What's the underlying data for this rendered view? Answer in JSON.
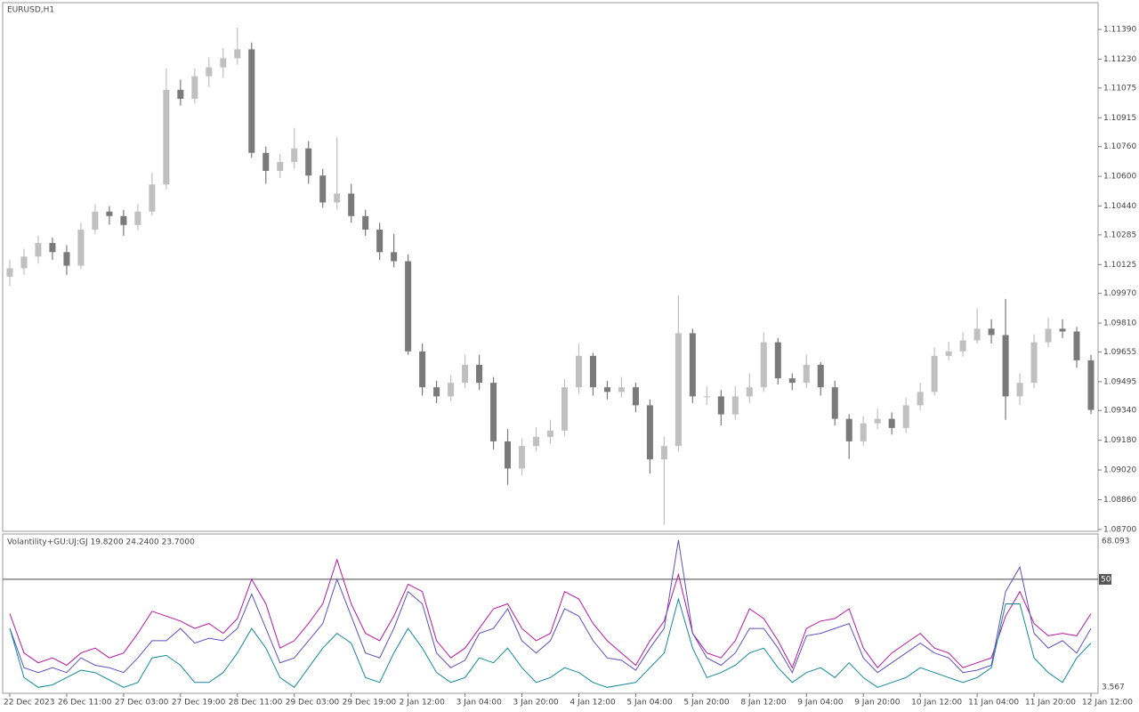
{
  "chart_data": [
    {
      "type": "candlestick",
      "title": "EURUSD,H1",
      "categories": [
        "22 Dec 2023",
        null,
        null,
        null,
        "26 Dec 11:00",
        null,
        null,
        null,
        "27 Dec 03:00",
        null,
        null,
        null,
        "27 Dec 19:00",
        null,
        null,
        null,
        "28 Dec 11:00",
        null,
        null,
        null,
        "29 Dec 03:00",
        null,
        null,
        null,
        "29 Dec 19:00",
        null,
        null,
        null,
        "2 Jan 12:00",
        null,
        null,
        null,
        "3 Jan 04:00",
        null,
        null,
        null,
        "3 Jan 20:00",
        null,
        null,
        null,
        "4 Jan 12:00",
        null,
        null,
        null,
        "5 Jan 04:00",
        null,
        null,
        null,
        "5 Jan 20:00",
        null,
        null,
        null,
        "8 Jan 12:00",
        null,
        null,
        null,
        "9 Jan 04:00",
        null,
        null,
        null,
        "9 Jan 20:00",
        null,
        null,
        null,
        "10 Jan 12:00",
        null,
        null,
        null,
        "11 Jan 04:00",
        null,
        null,
        null,
        "11 Jan 20:00",
        null,
        null,
        null,
        "12 Jan 12:00"
      ],
      "open": [
        1.1006,
        1.10105,
        1.10168,
        1.10241,
        1.10192,
        1.10119,
        1.10313,
        1.1041,
        1.10386,
        1.10338,
        1.1041,
        1.10556,
        1.11065,
        1.11017,
        1.11138,
        1.11186,
        1.11235,
        1.11283,
        1.10726,
        1.10629,
        1.10677,
        1.1075,
        1.10604,
        1.10459,
        1.10507,
        1.10386,
        1.10313,
        1.10192,
        1.10143,
        1.09658,
        1.09465,
        1.09416,
        1.09489,
        1.09586,
        1.09489,
        1.09174,
        1.09028,
        1.09149,
        1.09198,
        1.09232,
        1.09465,
        1.09634,
        1.09465,
        1.0944,
        1.09465,
        1.09368,
        1.09077,
        1.09149,
        1.09756,
        1.09416,
        1.09416,
        1.09319,
        1.09416,
        1.09465,
        1.09707,
        1.09513,
        1.09489,
        1.09586,
        1.09465,
        1.09295,
        1.09174,
        1.09271,
        1.09295,
        1.09246,
        1.09368,
        1.0944,
        1.09634,
        1.09658,
        1.09717,
        1.0978,
        1.09746,
        1.09416,
        1.09489,
        1.09707,
        1.0978,
        1.09765,
        1.0961
      ],
      "high": [
        1.1015,
        1.1021,
        1.1028,
        1.1027,
        1.1023,
        1.1035,
        1.1045,
        1.1044,
        1.1042,
        1.1045,
        1.1062,
        1.1118,
        1.1112,
        1.1118,
        1.1124,
        1.1129,
        1.114,
        1.1132,
        1.1076,
        1.1072,
        1.1086,
        1.1079,
        1.1064,
        1.1081,
        1.1056,
        1.1042,
        1.1035,
        1.1029,
        1.1018,
        1.097,
        1.095,
        1.0953,
        1.0964,
        1.0964,
        1.0952,
        1.0924,
        1.0919,
        1.0925,
        1.0929,
        1.0951,
        1.097,
        1.0965,
        1.095,
        1.0952,
        1.0949,
        1.094,
        1.092,
        1.0996,
        1.0978,
        1.0947,
        1.0945,
        1.0947,
        1.0954,
        1.0976,
        1.0973,
        1.0954,
        1.0964,
        1.096,
        1.095,
        1.0932,
        1.0931,
        1.0935,
        1.0933,
        1.0941,
        1.0949,
        1.0968,
        1.0971,
        1.0976,
        1.0989,
        1.0983,
        1.0994,
        1.0954,
        1.0975,
        1.0984,
        1.0983,
        1.0979,
        1.0964
      ],
      "low": [
        1.1001,
        1.1007,
        1.1013,
        1.1015,
        1.1007,
        1.101,
        1.1029,
        1.1034,
        1.1028,
        1.1031,
        1.1039,
        1.1053,
        1.1098,
        1.1099,
        1.1108,
        1.1113,
        1.112,
        1.107,
        1.1056,
        1.1059,
        1.1064,
        1.1056,
        1.1043,
        1.1042,
        1.1035,
        1.1028,
        1.1015,
        1.1011,
        1.0964,
        1.0942,
        1.0938,
        1.0939,
        1.0946,
        1.0945,
        1.0913,
        1.0894,
        1.0899,
        1.0912,
        1.0916,
        1.092,
        1.0943,
        1.0942,
        1.094,
        1.0941,
        1.0933,
        1.09,
        1.08725,
        1.0912,
        1.0938,
        1.0937,
        1.0926,
        1.0929,
        1.0938,
        1.0944,
        1.0948,
        1.0945,
        1.0946,
        1.0942,
        1.0926,
        1.0908,
        1.0915,
        1.0924,
        1.0921,
        1.0922,
        1.0934,
        1.0942,
        1.0961,
        1.0963,
        1.097,
        1.097,
        1.0929,
        1.0937,
        1.0946,
        1.0968,
        1.0973,
        1.0957,
        1.0932
      ],
      "close": [
        1.10105,
        1.10168,
        1.10241,
        1.10192,
        1.10119,
        1.10313,
        1.1041,
        1.10386,
        1.10338,
        1.1041,
        1.10556,
        1.11065,
        1.11017,
        1.11138,
        1.11186,
        1.11235,
        1.11283,
        1.10726,
        1.10629,
        1.10677,
        1.1075,
        1.10604,
        1.10459,
        1.10507,
        1.10386,
        1.10313,
        1.10192,
        1.10143,
        1.09658,
        1.09465,
        1.09416,
        1.09489,
        1.09586,
        1.09489,
        1.09174,
        1.09028,
        1.09149,
        1.09198,
        1.09232,
        1.09465,
        1.09634,
        1.09465,
        1.0944,
        1.09465,
        1.09368,
        1.09077,
        1.09149,
        1.09756,
        1.09416,
        1.09416,
        1.09319,
        1.09416,
        1.09465,
        1.09707,
        1.09513,
        1.09489,
        1.09586,
        1.09465,
        1.09295,
        1.09174,
        1.09271,
        1.09295,
        1.09246,
        1.09368,
        1.0944,
        1.09634,
        1.09658,
        1.09717,
        1.0978,
        1.09746,
        1.09416,
        1.09489,
        1.09707,
        1.0978,
        1.09765,
        1.0961,
        1.09343
      ],
      "up_color": "#c0c0c0",
      "down_color": "#7a7a7a",
      "ylim": [
        1.0869,
        1.11534
      ],
      "yticks": [
        {
          "value": 1.1139,
          "label": "1.11390"
        },
        {
          "value": 1.1123,
          "label": "1.11230"
        },
        {
          "value": 1.11075,
          "label": "1.11075"
        },
        {
          "value": 1.10915,
          "label": "1.10915"
        },
        {
          "value": 1.1076,
          "label": "1.10760"
        },
        {
          "value": 1.106,
          "label": "1.10600"
        },
        {
          "value": 1.1044,
          "label": "1.10440"
        },
        {
          "value": 1.10285,
          "label": "1.10285"
        },
        {
          "value": 1.10125,
          "label": "1.10125"
        },
        {
          "value": 1.0997,
          "label": "1.09970"
        },
        {
          "value": 1.0981,
          "label": "1.09810"
        },
        {
          "value": 1.09655,
          "label": "1.09655"
        },
        {
          "value": 1.09495,
          "label": "1.09495"
        },
        {
          "value": 1.0934,
          "label": "1.09340"
        },
        {
          "value": 1.0918,
          "label": "1.09180"
        },
        {
          "value": 1.0902,
          "label": "1.09020"
        },
        {
          "value": 1.0886,
          "label": "1.08860"
        },
        {
          "value": 1.087,
          "label": "1.08700"
        }
      ]
    },
    {
      "type": "line",
      "title": "Volantility+GU:UJ:GJ 19.8200 24.2400 23.7000",
      "series": [
        {
          "color": "#b5179e",
          "values": [
            36,
            20,
            16,
            18,
            15,
            20,
            22,
            18,
            20,
            28,
            37,
            35,
            33,
            30,
            32,
            28,
            34,
            50,
            40,
            22,
            25,
            32,
            40,
            58,
            40,
            28,
            25,
            35,
            48,
            45,
            25,
            18,
            22,
            30,
            38,
            40,
            30,
            25,
            28,
            45,
            42,
            32,
            25,
            20,
            15,
            25,
            33,
            52,
            28,
            20,
            18,
            25,
            38,
            34,
            25,
            14,
            30,
            33,
            34,
            38,
            22,
            14,
            20,
            24,
            28,
            22,
            20,
            14,
            16,
            18,
            35,
            45,
            32,
            27,
            28,
            27,
            36
          ]
        },
        {
          "color": "#5c4fc0",
          "values": [
            30,
            14,
            12,
            14,
            12,
            18,
            15,
            14,
            12,
            18,
            25,
            25,
            30,
            24,
            26,
            25,
            30,
            44,
            30,
            16,
            18,
            25,
            32,
            50,
            35,
            20,
            18,
            30,
            45,
            40,
            20,
            14,
            17,
            28,
            30,
            38,
            25,
            20,
            25,
            38,
            35,
            25,
            18,
            17,
            13,
            22,
            30,
            66,
            28,
            18,
            15,
            20,
            30,
            30,
            22,
            12,
            27,
            28,
            30,
            32,
            18,
            12,
            16,
            20,
            24,
            20,
            18,
            12,
            13,
            15,
            45,
            55,
            28,
            22,
            25,
            20,
            30
          ]
        },
        {
          "color": "#13889a",
          "values": [
            30,
            10,
            6,
            7,
            10,
            13,
            12,
            9,
            6,
            8,
            18,
            19,
            15,
            8,
            8,
            12,
            20,
            30,
            22,
            10,
            6,
            14,
            22,
            28,
            24,
            10,
            8,
            20,
            30,
            22,
            12,
            8,
            10,
            18,
            16,
            22,
            14,
            8,
            10,
            14,
            12,
            8,
            6,
            7,
            8,
            14,
            20,
            42,
            22,
            10,
            12,
            15,
            20,
            22,
            14,
            8,
            12,
            14,
            10,
            16,
            10,
            6,
            8,
            10,
            14,
            12,
            10,
            8,
            10,
            14,
            40,
            40,
            18,
            12,
            8,
            18,
            24
          ]
        }
      ],
      "ylim": [
        3.567,
        68.093
      ],
      "yticks": [
        68.093,
        3.567
      ],
      "levels": [
        50
      ]
    }
  ]
}
